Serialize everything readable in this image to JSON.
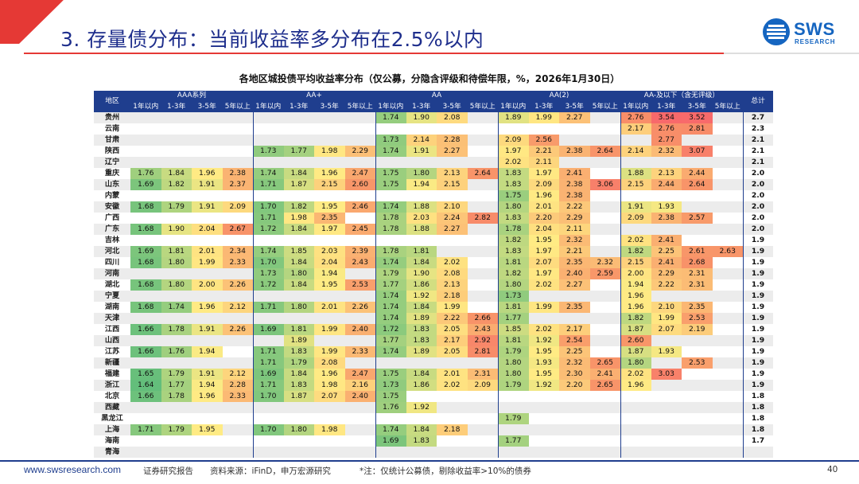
{
  "header": {
    "title": "3. 存量债分布：当前收益率多分布在2.5%以内",
    "logo_text": "SWS",
    "logo_sub": "RESEARCH"
  },
  "table": {
    "title": "各地区城投债平均收益率分布（仅公募，分隐含评级和待偿年限，%，2026年1月30日）",
    "region_header": "地区",
    "total_header": "总计",
    "groups": [
      "AAA系列",
      "AA+",
      "AA",
      "AA(2)",
      "AA-及以下（含无评级）"
    ],
    "terms": [
      "1年以内",
      "1-3年",
      "3-5年",
      "5年以上"
    ],
    "rows": [
      {
        "region": "贵州",
        "values": [
          "",
          "",
          "",
          "",
          "",
          "",
          "",
          "",
          "1.74",
          "1.90",
          "2.08",
          "",
          "1.89",
          "1.99",
          "2.27",
          "",
          "2.76",
          "3.54",
          "3.52",
          ""
        ],
        "total": "2.7"
      },
      {
        "region": "云南",
        "values": [
          "",
          "",
          "",
          "",
          "",
          "",
          "",
          "",
          "",
          "",
          "",
          "",
          "",
          "",
          "",
          "",
          "2.17",
          "2.76",
          "2.81",
          ""
        ],
        "total": "2.3"
      },
      {
        "region": "甘肃",
        "values": [
          "",
          "",
          "",
          "",
          "",
          "",
          "",
          "",
          "1.73",
          "2.14",
          "2.28",
          "",
          "2.09",
          "2.56",
          "",
          "",
          "",
          "2.77",
          "",
          ""
        ],
        "total": "2.1"
      },
      {
        "region": "陕西",
        "values": [
          "",
          "",
          "",
          "",
          "1.73",
          "1.77",
          "1.98",
          "2.29",
          "1.74",
          "1.91",
          "2.27",
          "",
          "1.97",
          "2.21",
          "2.38",
          "2.64",
          "2.14",
          "2.32",
          "3.07",
          ""
        ],
        "total": "2.1"
      },
      {
        "region": "辽宁",
        "values": [
          "",
          "",
          "",
          "",
          "",
          "",
          "",
          "",
          "",
          "",
          "",
          "",
          "2.02",
          "2.11",
          "",
          "",
          "",
          "",
          "",
          ""
        ],
        "total": "2.1"
      },
      {
        "region": "重庆",
        "values": [
          "1.76",
          "1.84",
          "1.96",
          "2.38",
          "1.74",
          "1.84",
          "1.96",
          "2.47",
          "1.75",
          "1.80",
          "2.13",
          "2.64",
          "1.83",
          "1.97",
          "2.41",
          "",
          "1.88",
          "2.13",
          "2.44",
          ""
        ],
        "total": "2.0"
      },
      {
        "region": "山东",
        "values": [
          "1.69",
          "1.82",
          "1.91",
          "2.37",
          "1.71",
          "1.87",
          "2.15",
          "2.60",
          "1.75",
          "1.94",
          "2.15",
          "",
          "1.83",
          "2.09",
          "2.38",
          "3.06",
          "2.15",
          "2.44",
          "2.64",
          ""
        ],
        "total": "2.0"
      },
      {
        "region": "内蒙",
        "values": [
          "",
          "",
          "",
          "",
          "",
          "",
          "",
          "",
          "",
          "",
          "",
          "",
          "1.75",
          "1.96",
          "2.38",
          "",
          "",
          "",
          "",
          ""
        ],
        "total": "2.0"
      },
      {
        "region": "安徽",
        "values": [
          "1.68",
          "1.79",
          "1.91",
          "2.09",
          "1.70",
          "1.82",
          "1.95",
          "2.46",
          "1.74",
          "1.88",
          "2.10",
          "",
          "1.80",
          "2.01",
          "2.22",
          "",
          "1.91",
          "1.93",
          "",
          ""
        ],
        "total": "2.0"
      },
      {
        "region": "广西",
        "values": [
          "",
          "",
          "",
          "",
          "1.71",
          "1.98",
          "2.35",
          "",
          "1.78",
          "2.03",
          "2.24",
          "2.82",
          "1.83",
          "2.20",
          "2.29",
          "",
          "2.09",
          "2.38",
          "2.57",
          ""
        ],
        "total": "2.0"
      },
      {
        "region": "广东",
        "values": [
          "1.68",
          "1.90",
          "2.04",
          "2.67",
          "1.72",
          "1.84",
          "1.97",
          "2.45",
          "1.78",
          "1.88",
          "2.27",
          "",
          "1.78",
          "2.04",
          "2.11",
          "",
          "",
          "",
          "",
          ""
        ],
        "total": "2.0"
      },
      {
        "region": "吉林",
        "values": [
          "",
          "",
          "",
          "",
          "",
          "",
          "",
          "",
          "",
          "",
          "",
          "",
          "1.82",
          "1.95",
          "2.32",
          "",
          "2.02",
          "2.41",
          "",
          ""
        ],
        "total": "1.9"
      },
      {
        "region": "河北",
        "values": [
          "1.69",
          "1.81",
          "2.01",
          "2.34",
          "1.74",
          "1.85",
          "2.03",
          "2.39",
          "1.78",
          "1.81",
          "",
          "",
          "1.83",
          "1.97",
          "2.21",
          "",
          "1.82",
          "2.25",
          "2.61",
          "2.63"
        ],
        "total": "1.9"
      },
      {
        "region": "四川",
        "values": [
          "1.68",
          "1.80",
          "1.99",
          "2.33",
          "1.70",
          "1.84",
          "2.04",
          "2.43",
          "1.74",
          "1.84",
          "2.02",
          "",
          "1.81",
          "2.07",
          "2.35",
          "2.32",
          "2.15",
          "2.41",
          "2.68",
          ""
        ],
        "total": "1.9"
      },
      {
        "region": "河南",
        "values": [
          "",
          "",
          "",
          "",
          "1.73",
          "1.80",
          "1.94",
          "",
          "1.79",
          "1.90",
          "2.08",
          "",
          "1.82",
          "1.97",
          "2.40",
          "2.59",
          "2.00",
          "2.29",
          "2.31",
          ""
        ],
        "total": "1.9"
      },
      {
        "region": "湖北",
        "values": [
          "1.68",
          "1.80",
          "2.00",
          "2.26",
          "1.72",
          "1.84",
          "1.95",
          "2.53",
          "1.77",
          "1.86",
          "2.13",
          "",
          "1.80",
          "2.02",
          "2.27",
          "",
          "1.94",
          "2.22",
          "2.31",
          ""
        ],
        "total": "1.9"
      },
      {
        "region": "宁夏",
        "values": [
          "",
          "",
          "",
          "",
          "",
          "",
          "",
          "",
          "1.74",
          "1.92",
          "2.18",
          "",
          "1.73",
          "",
          "",
          "",
          "1.96",
          "",
          "",
          ""
        ],
        "total": "1.9"
      },
      {
        "region": "湖南",
        "values": [
          "1.68",
          "1.74",
          "1.96",
          "2.12",
          "1.71",
          "1.80",
          "2.01",
          "2.26",
          "1.74",
          "1.84",
          "1.99",
          "",
          "1.81",
          "1.99",
          "2.35",
          "",
          "1.96",
          "2.10",
          "2.35",
          ""
        ],
        "total": "1.9"
      },
      {
        "region": "天津",
        "values": [
          "",
          "",
          "",
          "",
          "",
          "",
          "",
          "",
          "1.74",
          "1.89",
          "2.22",
          "2.66",
          "1.77",
          "",
          "",
          "",
          "1.82",
          "1.99",
          "2.53",
          ""
        ],
        "total": "1.9"
      },
      {
        "region": "江西",
        "values": [
          "1.66",
          "1.78",
          "1.91",
          "2.26",
          "1.69",
          "1.81",
          "1.99",
          "2.40",
          "1.72",
          "1.83",
          "2.05",
          "2.43",
          "1.85",
          "2.02",
          "2.17",
          "",
          "1.87",
          "2.07",
          "2.19",
          ""
        ],
        "total": "1.9"
      },
      {
        "region": "山西",
        "values": [
          "",
          "",
          "",
          "",
          "",
          "1.89",
          "",
          "",
          "1.77",
          "1.83",
          "2.17",
          "2.92",
          "1.81",
          "1.92",
          "2.54",
          "",
          "2.60",
          "",
          "",
          ""
        ],
        "total": "1.9"
      },
      {
        "region": "江苏",
        "values": [
          "1.66",
          "1.76",
          "1.94",
          "",
          "1.71",
          "1.83",
          "1.99",
          "2.33",
          "1.74",
          "1.89",
          "2.05",
          "2.81",
          "1.79",
          "1.95",
          "2.25",
          "",
          "1.87",
          "1.93",
          "",
          ""
        ],
        "total": "1.9"
      },
      {
        "region": "新疆",
        "values": [
          "",
          "",
          "",
          "",
          "1.71",
          "1.79",
          "2.08",
          "",
          "",
          "",
          "",
          "",
          "1.80",
          "1.93",
          "2.32",
          "2.65",
          "1.80",
          "",
          "2.53",
          ""
        ],
        "total": "1.9"
      },
      {
        "region": "福建",
        "values": [
          "1.65",
          "1.79",
          "1.91",
          "2.12",
          "1.69",
          "1.84",
          "1.96",
          "2.47",
          "1.75",
          "1.84",
          "2.01",
          "2.31",
          "1.80",
          "1.95",
          "2.30",
          "2.41",
          "2.02",
          "3.03",
          "",
          ""
        ],
        "total": "1.9"
      },
      {
        "region": "浙江",
        "values": [
          "1.64",
          "1.77",
          "1.94",
          "2.28",
          "1.71",
          "1.83",
          "1.98",
          "2.16",
          "1.73",
          "1.86",
          "2.02",
          "2.09",
          "1.79",
          "1.92",
          "2.20",
          "2.65",
          "1.96",
          "",
          "",
          ""
        ],
        "total": "1.9"
      },
      {
        "region": "北京",
        "values": [
          "1.66",
          "1.78",
          "1.96",
          "2.33",
          "1.70",
          "1.87",
          "2.07",
          "2.40",
          "1.75",
          "",
          "",
          "",
          "",
          "",
          "",
          "",
          "",
          "",
          "",
          ""
        ],
        "total": "1.8"
      },
      {
        "region": "西藏",
        "values": [
          "",
          "",
          "",
          "",
          "",
          "",
          "",
          "",
          "1.76",
          "1.92",
          "",
          "",
          "",
          "",
          "",
          "",
          "",
          "",
          "",
          ""
        ],
        "total": "1.8"
      },
      {
        "region": "黑龙江",
        "values": [
          "",
          "",
          "",
          "",
          "",
          "",
          "",
          "",
          "",
          "",
          "",
          "",
          "1.79",
          "",
          "",
          "",
          "",
          "",
          "",
          ""
        ],
        "total": "1.8"
      },
      {
        "region": "上海",
        "values": [
          "1.71",
          "1.79",
          "1.95",
          "",
          "1.70",
          "1.80",
          "1.98",
          "",
          "1.74",
          "1.84",
          "2.18",
          "",
          "",
          "",
          "",
          "",
          "",
          "",
          "",
          ""
        ],
        "total": "1.8"
      },
      {
        "region": "海南",
        "values": [
          "",
          "",
          "",
          "",
          "",
          "",
          "",
          "",
          "1.69",
          "1.83",
          "",
          "",
          "1.77",
          "",
          "",
          "",
          "",
          "",
          "",
          ""
        ],
        "total": "1.7"
      },
      {
        "region": "青海",
        "values": [
          "",
          "",
          "",
          "",
          "",
          "",
          "",
          "",
          "",
          "",
          "",
          "",
          "",
          "",
          "",
          "",
          "",
          "",
          "",
          ""
        ],
        "total": ""
      }
    ]
  },
  "footer": {
    "url": "www.swsresearch.com",
    "label": "证券研究报告",
    "source": "资料来源：iFinD，申万宏源研究",
    "note": "*注：仅统计公募债，剔除收益率>10%的债券",
    "page": "40"
  },
  "colors": {
    "brand": "#1f3e8e",
    "accent_red": "#e53935",
    "logo_blue": "#1565c0"
  }
}
